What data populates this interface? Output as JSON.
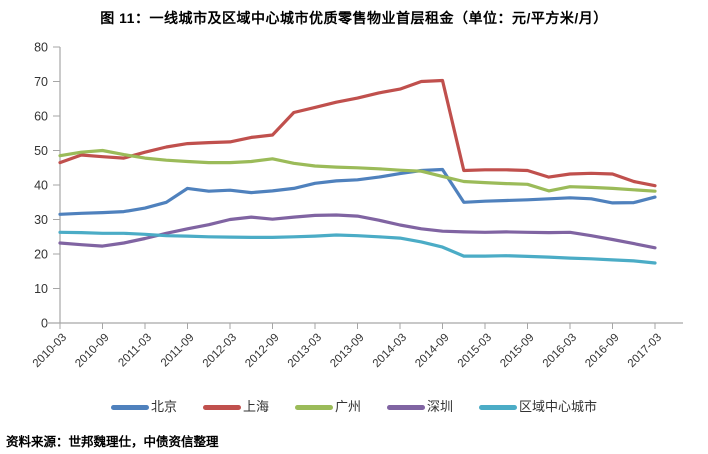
{
  "title": "图 11：一线城市及区域中心城市优质零售物业首层租金（单位：元/平方米/月）",
  "source": "资料来源：世邦魏理仕，中债资信整理",
  "colors": {
    "axis": "#A6A6A6",
    "tick_text": "#333333"
  },
  "chart_data": {
    "type": "line",
    "title": "图 11：一线城市及区域中心城市优质零售物业首层租金（单位：元/平方米/月）",
    "xlabel": "",
    "ylabel": "",
    "ylim": [
      0,
      80
    ],
    "y_tick_step": 10,
    "grid": false,
    "legend_position": "bottom",
    "x_label_every": 2,
    "categories": [
      "2010-03",
      "2010-06",
      "2010-09",
      "2010-12",
      "2011-03",
      "2011-06",
      "2011-09",
      "2011-12",
      "2012-03",
      "2012-06",
      "2012-09",
      "2012-12",
      "2013-03",
      "2013-06",
      "2013-09",
      "2013-12",
      "2014-03",
      "2014-06",
      "2014-09",
      "2014-12",
      "2015-03",
      "2015-06",
      "2015-09",
      "2015-12",
      "2016-03",
      "2016-06",
      "2016-09",
      "2016-12",
      "2017-03"
    ],
    "series": [
      {
        "id": "beijing",
        "name": "北京",
        "color": "#4F81BD",
        "values": [
          31.5,
          31.8,
          32.0,
          32.3,
          33.3,
          35.0,
          39.0,
          38.2,
          38.5,
          37.8,
          38.3,
          39.0,
          40.5,
          41.2,
          41.5,
          42.3,
          43.3,
          44.2,
          44.5,
          35.0,
          35.3,
          35.5,
          35.7,
          36.0,
          36.3,
          36.0,
          34.8,
          34.9,
          36.5
        ]
      },
      {
        "id": "shanghai",
        "name": "上海",
        "color": "#C0504D",
        "values": [
          46.5,
          48.7,
          48.2,
          47.8,
          49.5,
          51.0,
          52.0,
          52.3,
          52.5,
          53.8,
          54.5,
          61.0,
          62.5,
          64.0,
          65.2,
          66.7,
          67.8,
          70.0,
          70.3,
          44.2,
          44.4,
          44.4,
          44.2,
          42.3,
          43.2,
          43.4,
          43.2,
          41.0,
          39.8
        ]
      },
      {
        "id": "guangzhou",
        "name": "广州",
        "color": "#9BBB59",
        "values": [
          48.5,
          49.5,
          50.0,
          48.8,
          47.8,
          47.2,
          46.8,
          46.5,
          46.5,
          46.8,
          47.6,
          46.3,
          45.5,
          45.2,
          45.0,
          44.7,
          44.3,
          44.0,
          42.5,
          41.0,
          40.7,
          40.4,
          40.2,
          38.3,
          39.5,
          39.3,
          39.0,
          38.6,
          38.2
        ]
      },
      {
        "id": "shenzhen",
        "name": "深圳",
        "color": "#8064A2",
        "values": [
          23.2,
          22.7,
          22.3,
          23.2,
          24.5,
          26.0,
          27.3,
          28.5,
          30.0,
          30.7,
          30.1,
          30.7,
          31.2,
          31.3,
          31.0,
          29.8,
          28.4,
          27.3,
          26.6,
          26.4,
          26.3,
          26.4,
          26.3,
          26.2,
          26.3,
          25.3,
          24.2,
          23.0,
          21.8
        ]
      },
      {
        "id": "regional-center-cities",
        "name": "区域中心城市",
        "color": "#4BACC6",
        "values": [
          26.3,
          26.2,
          26.0,
          26.0,
          25.7,
          25.3,
          25.2,
          25.0,
          24.9,
          24.8,
          24.8,
          25.0,
          25.2,
          25.5,
          25.3,
          25.0,
          24.6,
          23.5,
          22.0,
          19.4,
          19.4,
          19.5,
          19.3,
          19.1,
          18.8,
          18.6,
          18.3,
          18.0,
          17.4
        ]
      }
    ]
  }
}
